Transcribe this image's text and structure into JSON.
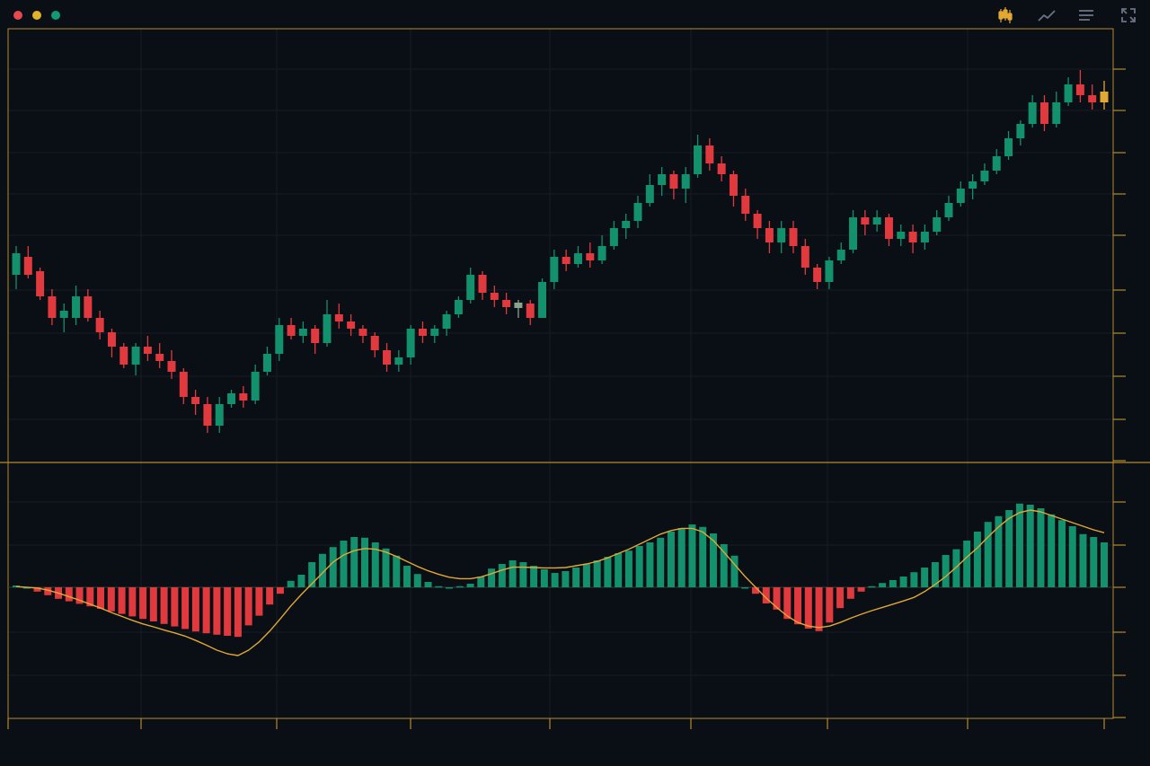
{
  "window": {
    "controls": [
      {
        "name": "close-dot",
        "color": "#e5484d"
      },
      {
        "name": "minimize-dot",
        "color": "#e0b12a"
      },
      {
        "name": "maximize-dot",
        "color": "#0f9b74"
      }
    ]
  },
  "toolbar": {
    "icons": [
      "candlestick-icon",
      "line-chart-icon",
      "menu-icon",
      "fullscreen-icon"
    ],
    "active": "candlestick-icon"
  },
  "colors": {
    "background": "#0a0e15",
    "grid": "#151c28",
    "frame": "#b58a2e",
    "up": "#13906c",
    "down": "#e03a3e",
    "neutral": "#8aa38f",
    "signal": "#e2a833",
    "icon": "#6b7384",
    "accent": "#e2a833"
  },
  "chart_data": [
    {
      "type": "candlestick",
      "title": "",
      "xlabel": "",
      "ylabel": "",
      "grid": true,
      "ylim": [
        0,
        100
      ],
      "candles": [
        [
          50,
          56,
          58,
          46
        ],
        [
          55,
          50,
          58,
          49
        ],
        [
          51,
          44,
          52,
          43
        ],
        [
          44,
          38,
          46,
          36
        ],
        [
          38,
          40,
          42,
          34
        ],
        [
          38,
          44,
          47,
          36
        ],
        [
          44,
          38,
          46,
          37
        ],
        [
          38,
          34,
          40,
          32
        ],
        [
          34,
          30,
          35,
          27
        ],
        [
          30,
          25,
          31,
          24
        ],
        [
          25,
          30,
          31,
          22
        ],
        [
          30,
          28,
          33,
          26
        ],
        [
          28,
          26,
          31,
          24
        ],
        [
          26,
          23,
          29,
          21
        ],
        [
          23,
          16,
          24,
          14
        ],
        [
          16,
          14,
          18,
          11
        ],
        [
          14,
          8,
          16,
          6
        ],
        [
          8,
          14,
          16,
          6
        ],
        [
          14,
          17,
          18,
          13
        ],
        [
          17,
          15,
          19,
          13
        ],
        [
          15,
          23,
          25,
          14
        ],
        [
          23,
          28,
          30,
          22
        ],
        [
          28,
          36,
          38,
          26
        ],
        [
          36,
          33,
          38,
          32
        ],
        [
          33,
          35,
          37,
          31
        ],
        [
          35,
          31,
          36,
          28
        ],
        [
          31,
          39,
          43,
          30
        ],
        [
          39,
          37,
          42,
          35
        ],
        [
          37,
          35,
          39,
          33
        ],
        [
          35,
          33,
          36,
          31
        ],
        [
          33,
          29,
          34,
          27
        ],
        [
          29,
          25,
          31,
          23
        ],
        [
          25,
          27,
          29,
          23
        ],
        [
          27,
          35,
          36,
          25
        ],
        [
          35,
          33,
          37,
          31
        ],
        [
          33,
          35,
          36,
          31
        ],
        [
          35,
          39,
          40,
          33
        ],
        [
          39,
          43,
          44,
          38
        ],
        [
          43,
          50,
          52,
          42
        ],
        [
          50,
          45,
          51,
          43
        ],
        [
          45,
          43,
          47,
          41
        ],
        [
          43,
          41,
          45,
          39
        ],
        [
          41,
          42,
          43,
          38
        ],
        [
          42,
          38,
          43,
          36
        ],
        [
          38,
          48,
          49,
          38
        ],
        [
          48,
          55,
          57,
          46
        ],
        [
          55,
          53,
          57,
          51
        ],
        [
          53,
          56,
          58,
          52
        ],
        [
          56,
          54,
          59,
          52
        ],
        [
          54,
          58,
          61,
          53
        ],
        [
          58,
          63,
          65,
          57
        ],
        [
          63,
          65,
          67,
          60
        ],
        [
          65,
          70,
          72,
          63
        ],
        [
          70,
          75,
          78,
          69
        ],
        [
          75,
          78,
          80,
          72
        ],
        [
          78,
          74,
          79,
          71
        ],
        [
          74,
          78,
          80,
          70
        ],
        [
          78,
          86,
          89,
          77
        ],
        [
          86,
          81,
          88,
          79
        ],
        [
          81,
          78,
          83,
          76
        ],
        [
          78,
          72,
          79,
          69
        ],
        [
          72,
          67,
          74,
          65
        ],
        [
          67,
          63,
          68,
          60
        ],
        [
          63,
          59,
          65,
          56
        ],
        [
          59,
          63,
          65,
          56
        ],
        [
          63,
          58,
          65,
          56
        ],
        [
          58,
          52,
          60,
          50
        ],
        [
          52,
          48,
          53,
          46
        ],
        [
          48,
          54,
          55,
          46
        ],
        [
          54,
          57,
          59,
          53
        ],
        [
          57,
          66,
          68,
          56
        ],
        [
          66,
          64,
          68,
          61
        ],
        [
          64,
          66,
          68,
          62
        ],
        [
          66,
          60,
          67,
          58
        ],
        [
          60,
          62,
          64,
          58
        ],
        [
          62,
          59,
          64,
          56
        ],
        [
          59,
          62,
          64,
          57
        ],
        [
          62,
          66,
          68,
          61
        ],
        [
          66,
          70,
          72,
          65
        ],
        [
          70,
          74,
          76,
          69
        ],
        [
          74,
          76,
          78,
          71
        ],
        [
          76,
          79,
          81,
          75
        ],
        [
          79,
          83,
          85,
          78
        ],
        [
          83,
          88,
          90,
          82
        ],
        [
          88,
          92,
          93,
          86
        ],
        [
          92,
          98,
          100,
          91
        ],
        [
          98,
          92,
          100,
          90
        ],
        [
          92,
          98,
          101,
          91
        ],
        [
          98,
          103,
          105,
          97
        ],
        [
          103,
          100,
          107,
          98
        ],
        [
          100,
          98,
          103,
          96
        ],
        [
          98,
          101,
          104,
          96
        ]
      ]
    },
    {
      "type": "bar",
      "title": "",
      "xlabel": "",
      "ylabel": "",
      "grid": true,
      "ylim": [
        -2.1,
        2.1
      ],
      "histogram": [
        0.05,
        0.0,
        -0.12,
        -0.22,
        -0.32,
        -0.39,
        -0.46,
        -0.53,
        -0.6,
        -0.67,
        -0.74,
        -0.81,
        -0.88,
        -0.95,
        -1.02,
        -1.09,
        -1.16,
        -1.23,
        -1.28,
        -1.32,
        -1.35,
        -1.38,
        -1.06,
        -0.79,
        -0.48,
        -0.18,
        0.18,
        0.35,
        0.7,
        0.93,
        1.12,
        1.3,
        1.4,
        1.38,
        1.25,
        1.08,
        0.88,
        0.6,
        0.37,
        0.15,
        0.03,
        0.0,
        0.03,
        0.1,
        0.3,
        0.52,
        0.65,
        0.75,
        0.7,
        0.6,
        0.5,
        0.4,
        0.45,
        0.55,
        0.65,
        0.75,
        0.85,
        0.95,
        1.02,
        1.15,
        1.25,
        1.38,
        1.55,
        1.65,
        1.75,
        1.68,
        1.5,
        1.2,
        0.88,
        0.0,
        -0.18,
        -0.45,
        -0.62,
        -0.88,
        -1.03,
        -1.15,
        -1.22,
        -0.98,
        -0.58,
        -0.32,
        -0.12,
        0.03,
        0.12,
        0.2,
        0.3,
        0.42,
        0.55,
        0.7,
        0.9,
        1.06,
        1.3,
        1.55,
        1.82,
        1.98,
        2.15,
        2.33,
        2.3,
        2.2,
        2.03,
        1.87,
        1.7,
        1.48,
        1.4,
        1.25
      ],
      "signal": [
        0.02,
        0.0,
        -0.02,
        -0.08,
        -0.16,
        -0.26,
        -0.36,
        -0.47,
        -0.58,
        -0.7,
        -0.81,
        -0.92,
        -1.02,
        -1.1,
        -1.19,
        -1.27,
        -1.36,
        -1.48,
        -1.61,
        -1.75,
        -1.85,
        -1.9,
        -1.75,
        -1.52,
        -1.22,
        -0.88,
        -0.52,
        -0.2,
        0.1,
        0.4,
        0.7,
        0.9,
        1.02,
        1.08,
        1.06,
        0.98,
        0.86,
        0.72,
        0.58,
        0.46,
        0.36,
        0.28,
        0.24,
        0.24,
        0.29,
        0.38,
        0.48,
        0.56,
        0.56,
        0.55,
        0.54,
        0.54,
        0.55,
        0.6,
        0.65,
        0.72,
        0.82,
        0.94,
        1.06,
        1.2,
        1.34,
        1.48,
        1.58,
        1.64,
        1.64,
        1.54,
        1.3,
        0.98,
        0.64,
        0.3,
        0.0,
        -0.3,
        -0.56,
        -0.8,
        -0.98,
        -1.08,
        -1.12,
        -1.08,
        -0.98,
        -0.86,
        -0.75,
        -0.65,
        -0.56,
        -0.47,
        -0.38,
        -0.28,
        -0.12,
        0.08,
        0.3,
        0.56,
        0.84,
        1.1,
        1.4,
        1.68,
        1.92,
        2.08,
        2.15,
        2.1,
        2.0,
        1.9,
        1.8,
        1.7,
        1.6,
        1.52
      ]
    }
  ]
}
